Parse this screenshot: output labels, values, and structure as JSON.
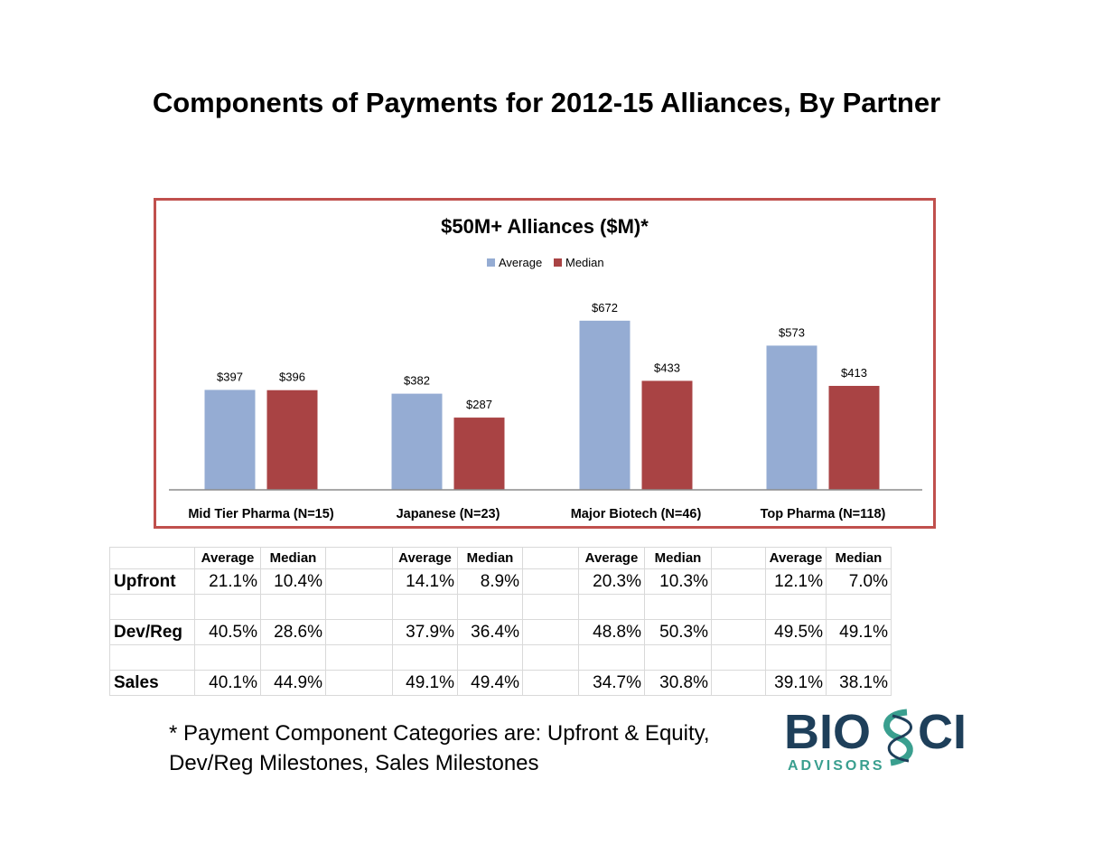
{
  "page": {
    "title": "Components of Payments for 2012-15 Alliances, By Partner",
    "footnote_line1": "* Payment Component Categories are:  Upfront & Equity,",
    "footnote_line2": "Dev/Reg Milestones, Sales Milestones"
  },
  "logo": {
    "text_main": "BIOSCI",
    "text_sub": "ADVISORS"
  },
  "chart_data": {
    "type": "bar",
    "title": "$50M+ Alliances ($M)*",
    "categories": [
      "Mid Tier Pharma (N=15)",
      "Japanese (N=23)",
      "Major Biotech (N=46)",
      "Top Pharma (N=118)"
    ],
    "series": [
      {
        "name": "Average",
        "values": [
          397,
          382,
          672,
          573
        ],
        "labels": [
          "$397",
          "$382",
          "$672",
          "$573"
        ],
        "color": "#95acd3"
      },
      {
        "name": "Median",
        "values": [
          396,
          287,
          433,
          413
        ],
        "labels": [
          "$396",
          "$287",
          "$433",
          "$413"
        ],
        "color": "#a94344"
      }
    ],
    "ylim": [
      0,
      800
    ],
    "grid": false,
    "legend": "top-center"
  },
  "table": {
    "header": [
      "Average",
      "Median"
    ],
    "rows": [
      {
        "label": "Upfront",
        "values": [
          [
            "21.1%",
            "10.4%"
          ],
          [
            "14.1%",
            "8.9%"
          ],
          [
            "20.3%",
            "10.3%"
          ],
          [
            "12.1%",
            "7.0%"
          ]
        ]
      },
      {
        "label": "Dev/Reg",
        "values": [
          [
            "40.5%",
            "28.6%"
          ],
          [
            "37.9%",
            "36.4%"
          ],
          [
            "48.8%",
            "50.3%"
          ],
          [
            "49.5%",
            "49.1%"
          ]
        ]
      },
      {
        "label": "Sales",
        "values": [
          [
            "40.1%",
            "44.9%"
          ],
          [
            "49.1%",
            "49.4%"
          ],
          [
            "34.7%",
            "30.8%"
          ],
          [
            "39.1%",
            "38.1%"
          ]
        ]
      }
    ]
  }
}
